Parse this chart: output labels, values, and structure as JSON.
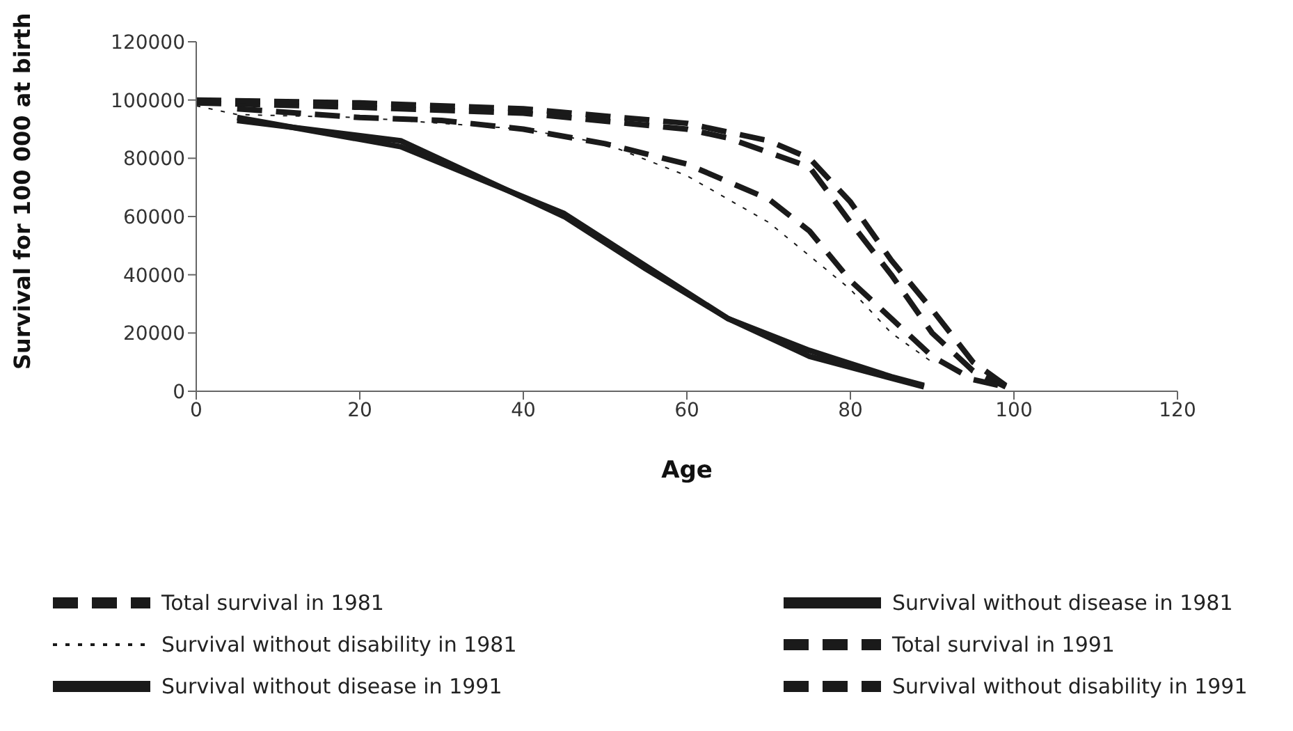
{
  "chart_data": {
    "type": "line",
    "xlabel": "Age",
    "ylabel": "Survival for 100 000 at birth",
    "xlim": [
      0,
      120
    ],
    "xticks": [
      0,
      20,
      40,
      60,
      80,
      100,
      120
    ],
    "ylim": [
      0,
      120000
    ],
    "yticks": [
      0,
      20000,
      40000,
      60000,
      80000,
      100000,
      120000
    ],
    "grid": false,
    "legend": "bottom",
    "marker": "none",
    "series": [
      {
        "name": "Total survival in 1981",
        "color": "#1a1a1a",
        "line_style": "dashed",
        "x": [
          0,
          20,
          40,
          60,
          65,
          75,
          80,
          85,
          90,
          95,
          99
        ],
        "values": [
          99000,
          97500,
          95500,
          90000,
          87000,
          77000,
          58000,
          40000,
          20000,
          7000,
          1500
        ]
      },
      {
        "name": "Survival without disease in 1981",
        "color": "#1a1a1a",
        "line_style": "solid",
        "x": [
          5,
          25,
          45,
          55,
          65,
          75,
          85,
          89
        ],
        "values": [
          93000,
          86000,
          60000,
          42000,
          25000,
          14000,
          5000,
          2000
        ]
      },
      {
        "name": "Survival without disability in 1981",
        "color": "#1a1a1a",
        "line_style": "dotted",
        "x": [
          0,
          5,
          20,
          40,
          50,
          60,
          70,
          80,
          85,
          90
        ],
        "values": [
          98000,
          95000,
          94000,
          90000,
          85000,
          74000,
          58000,
          35000,
          20000,
          10000
        ]
      },
      {
        "name": "Total survival in 1991",
        "color": "#1a1a1a",
        "line_style": "dashed",
        "x": [
          0,
          20,
          40,
          60,
          70,
          75,
          80,
          85,
          90,
          95,
          99
        ],
        "values": [
          100000,
          99000,
          97000,
          92000,
          86000,
          80000,
          65000,
          45000,
          28000,
          10000,
          2000
        ]
      },
      {
        "name": "Survival without disease in 1991",
        "color": "#1a1a1a",
        "line_style": "solid",
        "x": [
          5,
          25,
          45,
          65,
          75,
          89
        ],
        "values": [
          94000,
          84000,
          61000,
          25000,
          12000,
          1500
        ]
      },
      {
        "name": "Survival without disability in 1991",
        "color": "#1a1a1a",
        "line_style": "dashed",
        "x": [
          5,
          20,
          30,
          40,
          50,
          60,
          70,
          75,
          80,
          85,
          90,
          95,
          99
        ],
        "values": [
          97000,
          94000,
          93000,
          90000,
          85000,
          78000,
          66000,
          55000,
          38000,
          25000,
          12000,
          4000,
          1500
        ]
      }
    ]
  }
}
